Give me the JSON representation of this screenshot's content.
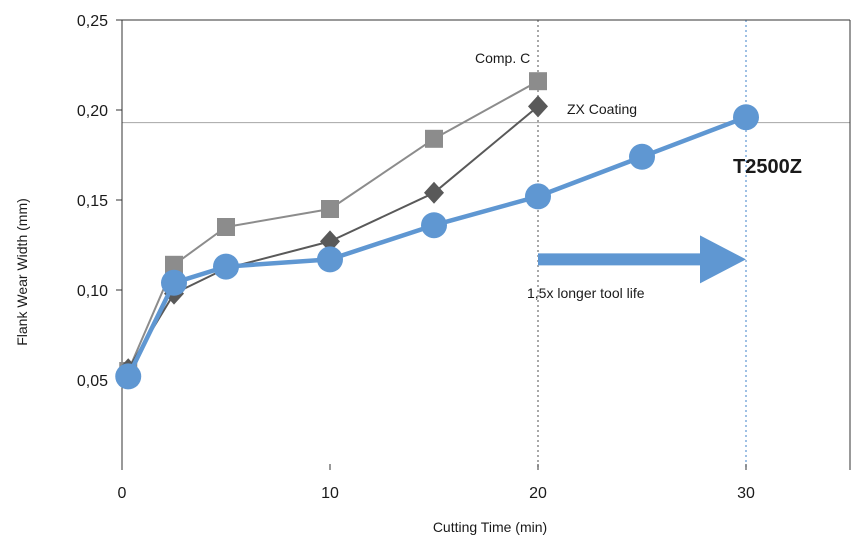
{
  "chart_data": {
    "type": "line",
    "xlabel": "Cutting Time (min)",
    "ylabel": "Flank Wear Width (mm)",
    "xlim": [
      0,
      35
    ],
    "ylim": [
      0,
      0.25
    ],
    "x_ticks": [
      0,
      10,
      20,
      30
    ],
    "x_tick_labels": [
      "0",
      "10",
      "20",
      "30"
    ],
    "y_ticks": [
      0.05,
      0.1,
      0.15,
      0.2,
      0.25
    ],
    "y_tick_labels": [
      "0,05",
      "0,10",
      "0,15",
      "0,20",
      "0,25"
    ],
    "grid": false,
    "legend": "none",
    "series": [
      {
        "name": "Comp. C",
        "color": "#8c8c8c",
        "marker": "square",
        "points": [
          [
            0.3,
            0.055
          ],
          [
            2.5,
            0.114
          ],
          [
            5,
            0.135
          ],
          [
            10,
            0.145
          ],
          [
            15,
            0.184
          ],
          [
            20,
            0.216
          ]
        ]
      },
      {
        "name": "ZX Coating",
        "color": "#595959",
        "marker": "diamond",
        "points": [
          [
            0.3,
            0.056
          ],
          [
            2.5,
            0.098
          ],
          [
            5,
            0.112
          ],
          [
            10,
            0.127
          ],
          [
            15,
            0.154
          ],
          [
            20,
            0.202
          ]
        ]
      },
      {
        "name": "T2500Z",
        "color": "#5f97d2",
        "marker": "circle",
        "points": [
          [
            0.3,
            0.052
          ],
          [
            2.5,
            0.104
          ],
          [
            5,
            0.113
          ],
          [
            10,
            0.117
          ],
          [
            15,
            0.136
          ],
          [
            20,
            0.152
          ],
          [
            25,
            0.174
          ],
          [
            30,
            0.196
          ]
        ]
      }
    ],
    "reference_lines": {
      "horizontal_y": 0.193,
      "vertical_x": [
        20,
        30
      ]
    },
    "annotations": {
      "arrow_label": "1,5x longer tool life",
      "arrow_from_x": 20,
      "arrow_to_x": 30,
      "arrow_y": 0.117,
      "arrow_color": "#5f97d2"
    }
  }
}
